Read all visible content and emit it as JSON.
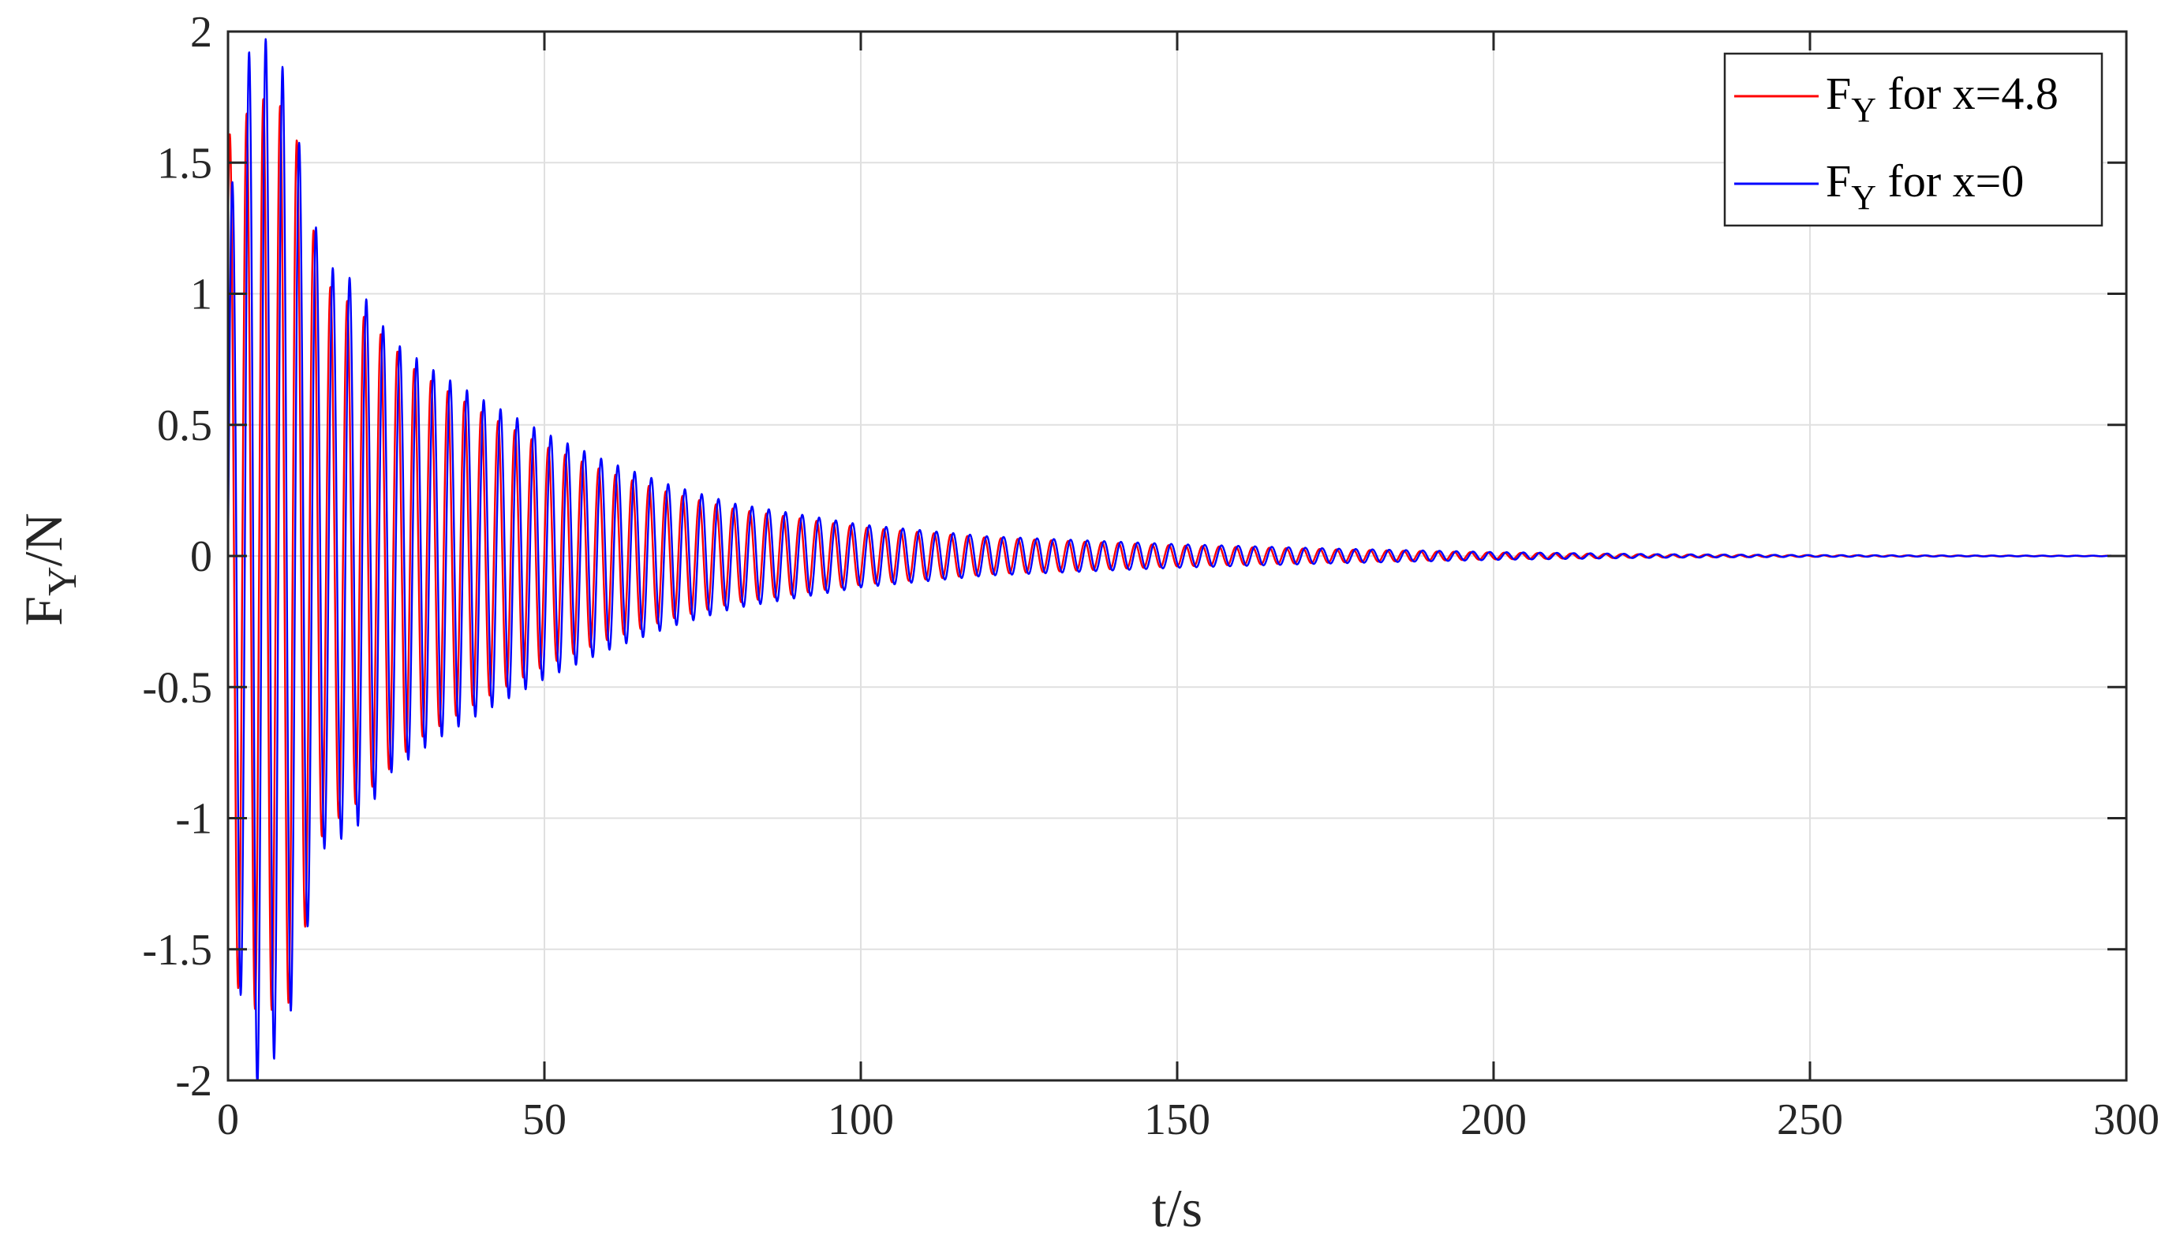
{
  "chart_data": {
    "type": "line",
    "title": "",
    "xlabel": "t/s",
    "ylabel_base": "F",
    "ylabel_sub": "Y",
    "ylabel_suffix": "/N",
    "xlim": [
      0,
      300
    ],
    "ylim": [
      -2,
      2
    ],
    "x_ticks": [
      0,
      50,
      100,
      150,
      200,
      250,
      300
    ],
    "x_tick_labels": [
      "0",
      "50",
      "100",
      "150",
      "200",
      "250",
      "300"
    ],
    "y_ticks": [
      2,
      1.5,
      1,
      0.5,
      0,
      -0.5,
      -1,
      -1.5,
      -2
    ],
    "y_tick_labels": [
      "2",
      "1.5",
      "1",
      "0.5",
      "0",
      "-0.5",
      "-1",
      "-1.5",
      "-2"
    ],
    "grid": true,
    "legend_position": "top-right",
    "series": [
      {
        "name_base": "F",
        "name_sub": "Y",
        "name_rest": " for x=4.8",
        "color": "#ff0000",
        "envelope": [
          [
            0,
            1.6
          ],
          [
            5,
            1.75
          ],
          [
            10,
            1.7
          ],
          [
            15,
            1.05
          ],
          [
            20,
            0.95
          ],
          [
            30,
            0.7
          ],
          [
            40,
            0.55
          ],
          [
            50,
            0.42
          ],
          [
            60,
            0.32
          ],
          [
            70,
            0.24
          ],
          [
            80,
            0.18
          ],
          [
            100,
            0.11
          ],
          [
            120,
            0.07
          ],
          [
            150,
            0.04
          ],
          [
            175,
            0.025
          ],
          [
            200,
            0.013
          ],
          [
            225,
            0.006
          ],
          [
            250,
            0.003
          ],
          [
            275,
            0.0015
          ],
          [
            300,
            0.001
          ]
        ],
        "period": 2.65,
        "phase": 0.9
      },
      {
        "name_base": "F",
        "name_sub": "Y",
        "name_rest": " for x=0",
        "color": "#0000ff",
        "envelope": [
          [
            0,
            1.3
          ],
          [
            4,
            2.05
          ],
          [
            9,
            1.85
          ],
          [
            15,
            1.12
          ],
          [
            20,
            1.05
          ],
          [
            26,
            0.82
          ],
          [
            33,
            0.7
          ],
          [
            40,
            0.6
          ],
          [
            50,
            0.47
          ],
          [
            60,
            0.36
          ],
          [
            70,
            0.27
          ],
          [
            80,
            0.2
          ],
          [
            100,
            0.12
          ],
          [
            120,
            0.075
          ],
          [
            150,
            0.045
          ],
          [
            175,
            0.028
          ],
          [
            200,
            0.015
          ],
          [
            225,
            0.007
          ],
          [
            250,
            0.0035
          ],
          [
            275,
            0.0018
          ],
          [
            300,
            0.001
          ]
        ],
        "period": 2.65,
        "phase": 0
      }
    ]
  }
}
